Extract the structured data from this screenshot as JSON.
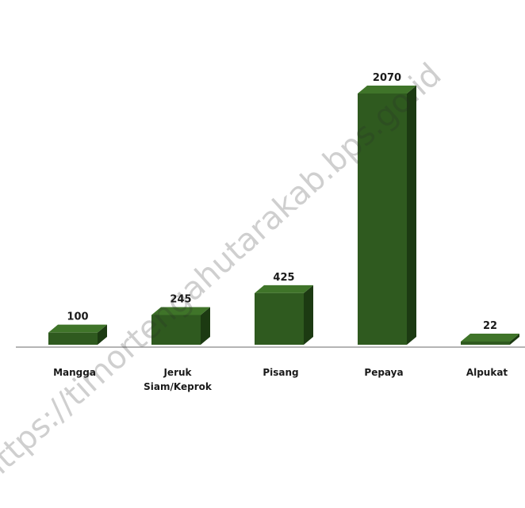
{
  "chart_data": {
    "type": "bar",
    "categories": [
      "Mangga",
      "Jeruk Siam/Keprok",
      "Pisang",
      "Pepaya",
      "Alpukat"
    ],
    "category_lines": [
      [
        "Mangga"
      ],
      [
        "Jeruk",
        "Siam/Keprok"
      ],
      [
        "Pisang"
      ],
      [
        "Pepaya"
      ],
      [
        "Alpukat"
      ]
    ],
    "values": [
      100,
      245,
      425,
      2070,
      22
    ],
    "value_labels": [
      "100",
      "245",
      "425",
      "2070",
      "22"
    ],
    "ylim": [
      0,
      2070
    ],
    "grid": false,
    "bar_style": "3d",
    "colors": {
      "bar_front": "#2f5a1f",
      "bar_top": "#3f7429",
      "bar_side": "#1c3a12",
      "baseline": "#b5b5b5"
    }
  },
  "watermark": "https://timortengahutarakab.bps.go.id"
}
